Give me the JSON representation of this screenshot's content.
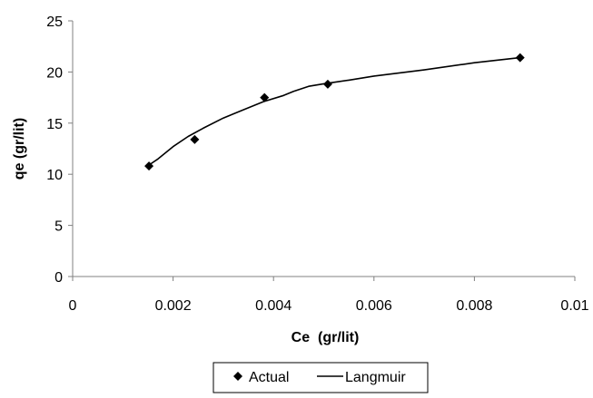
{
  "chart_data": {
    "type": "scatter",
    "title": "",
    "xlabel": "Ce  (gr/lit)",
    "ylabel": "qe (gr/lit)",
    "xlim": [
      0,
      0.01
    ],
    "ylim": [
      0,
      25
    ],
    "x_ticks": [
      0,
      0.002,
      0.004,
      0.006,
      0.008,
      0.01
    ],
    "x_tick_labels": [
      "0",
      "0.002",
      "0.004",
      "0.006",
      "0.008",
      "0.01"
    ],
    "y_ticks": [
      0,
      5,
      10,
      15,
      20,
      25
    ],
    "y_tick_labels": [
      "0",
      "5",
      "10",
      "15",
      "20",
      "25"
    ],
    "grid": false,
    "legend_position": "bottom",
    "series": [
      {
        "name": "Actual",
        "kind": "markers",
        "marker": "diamond",
        "color": "#000000",
        "x": [
          0.00152,
          0.00243,
          0.00382,
          0.00508,
          0.00891
        ],
        "y": [
          10.8,
          13.4,
          17.5,
          18.8,
          21.4
        ]
      },
      {
        "name": "Langmuir",
        "kind": "line",
        "color": "#000000",
        "x": [
          0.00152,
          0.0017,
          0.002,
          0.0023,
          0.0026,
          0.003,
          0.0034,
          0.0038,
          0.0042,
          0.0044,
          0.0047,
          0.005,
          0.0055,
          0.006,
          0.007,
          0.008,
          0.00891
        ],
        "y": [
          10.9,
          11.5,
          12.7,
          13.7,
          14.5,
          15.5,
          16.3,
          17.1,
          17.7,
          18.1,
          18.6,
          18.85,
          19.2,
          19.6,
          20.2,
          20.9,
          21.4
        ]
      }
    ]
  }
}
